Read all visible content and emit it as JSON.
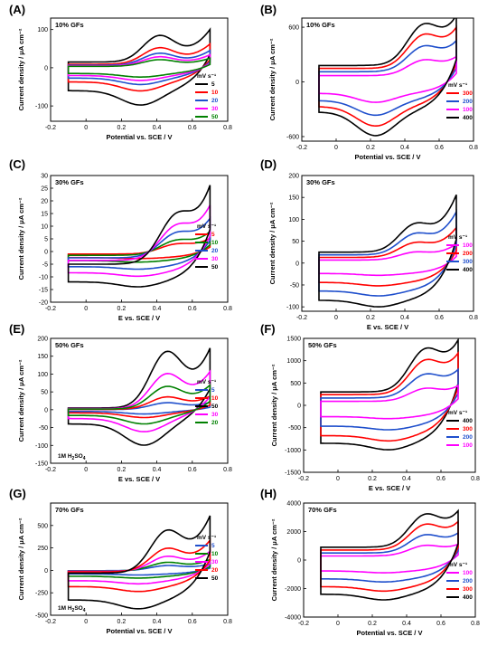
{
  "chart_data": [
    {
      "label": "(A)",
      "annotation": "10% GFs",
      "type": "line",
      "xlabel": "Potential vs. SCE / V",
      "ylabel": "Current density / μA cm⁻²",
      "xlim": [
        -0.2,
        0.8
      ],
      "ylim": [
        -140,
        130
      ],
      "xticks": [
        -0.2,
        0.0,
        0.2,
        0.4,
        0.6,
        0.8
      ],
      "yticks": [
        -100,
        0,
        100
      ],
      "legend_title": "mV s⁻¹",
      "series": [
        {
          "name": "5",
          "color": "#000000",
          "scale": 1.0
        },
        {
          "name": "10",
          "color": "#ff0000",
          "scale": 0.62
        },
        {
          "name": "20",
          "color": "#1f4fcc",
          "scale": 0.45
        },
        {
          "name": "30",
          "color": "#ff00ff",
          "scale": 0.34
        },
        {
          "name": "50",
          "color": "#008000",
          "scale": 0.25
        }
      ],
      "curve": {
        "x_start": -0.1,
        "x_end": 0.7,
        "anodic_base": 15,
        "cathodic_base": -60,
        "anodic_peak": [
          0.41,
          90
        ],
        "cathodic_peak": [
          0.31,
          -98
        ],
        "end_value": 100
      }
    },
    {
      "label": "(B)",
      "annotation": "10% GFs",
      "type": "line",
      "xlabel": "Potential vs. SCE / V",
      "ylabel": "Current density / μA cm⁻²",
      "xlim": [
        -0.2,
        0.8
      ],
      "ylim": [
        -650,
        700
      ],
      "xticks": [
        -0.2,
        0.0,
        0.2,
        0.4,
        0.6,
        0.8
      ],
      "yticks": [
        -600,
        0,
        600
      ],
      "legend_title": "mV s⁻¹",
      "series": [
        {
          "name": "300",
          "color": "#ff0000",
          "scale": 0.82
        },
        {
          "name": "200",
          "color": "#1f4fcc",
          "scale": 0.62
        },
        {
          "name": "100",
          "color": "#ff00ff",
          "scale": 0.38
        },
        {
          "name": "400",
          "color": "#000000",
          "scale": 1.0
        }
      ],
      "curve": {
        "x_start": -0.1,
        "x_end": 0.7,
        "anodic_base": 180,
        "cathodic_base": -330,
        "anodic_peak": [
          0.5,
          600
        ],
        "cathodic_peak": [
          0.23,
          -590
        ],
        "end_value": 700
      }
    },
    {
      "label": "(C)",
      "annotation": "30% GFs",
      "type": "line",
      "xlabel": "E vs. SCE / V",
      "ylabel": "Current density / μA cm⁻²",
      "xlim": [
        -0.2,
        0.8
      ],
      "ylim": [
        -20,
        30
      ],
      "xticks": [
        -0.2,
        0.0,
        0.2,
        0.4,
        0.6,
        0.8
      ],
      "yticks": [
        -20,
        -15,
        -10,
        -5,
        0,
        5,
        10,
        15,
        20,
        25,
        30
      ],
      "legend_title": "mV s⁻¹",
      "series": [
        {
          "name": "5",
          "color": "#ff0000",
          "scale": 0.2
        },
        {
          "name": "10",
          "color": "#008000",
          "scale": 0.3
        },
        {
          "name": "20",
          "color": "#1f4fcc",
          "scale": 0.5
        },
        {
          "name": "30",
          "color": "#ff00ff",
          "scale": 0.7
        },
        {
          "name": "50",
          "color": "#000000",
          "scale": 1.0
        }
      ],
      "curve": {
        "x_start": -0.1,
        "x_end": 0.7,
        "anodic_base": -5,
        "cathodic_base": -12,
        "anodic_peak": [
          0.5,
          12
        ],
        "cathodic_peak": [
          0.3,
          -14
        ],
        "end_value": 25
      }
    },
    {
      "label": "(D)",
      "annotation": "30% GFs",
      "type": "line",
      "xlabel": "E vs. SCE / V",
      "ylabel": "Current density / μA cm⁻²",
      "xlim": [
        -0.2,
        0.8
      ],
      "ylim": [
        -110,
        200
      ],
      "xticks": [
        -0.2,
        0.0,
        0.2,
        0.4,
        0.6,
        0.8
      ],
      "yticks": [
        -100,
        -50,
        0,
        50,
        100,
        150,
        200
      ],
      "legend_title": "mV s⁻¹",
      "series": [
        {
          "name": "100",
          "color": "#ff00ff",
          "scale": 0.28
        },
        {
          "name": "200",
          "color": "#ff0000",
          "scale": 0.52
        },
        {
          "name": "300",
          "color": "#1f4fcc",
          "scale": 0.75
        },
        {
          "name": "400",
          "color": "#000000",
          "scale": 1.0
        }
      ],
      "curve": {
        "x_start": -0.1,
        "x_end": 0.7,
        "anodic_base": 25,
        "cathodic_base": -85,
        "anodic_peak": [
          0.45,
          85
        ],
        "cathodic_peak": [
          0.25,
          -100
        ],
        "end_value": 155
      }
    },
    {
      "label": "(E)",
      "annotation": "50% GFs",
      "inset_text": "1M H2SO4",
      "type": "line",
      "xlabel": "E vs. SCE / V",
      "ylabel": "Current density / μA cm⁻²",
      "xlim": [
        -0.2,
        0.8
      ],
      "ylim": [
        -150,
        200
      ],
      "xticks": [
        -0.2,
        0.0,
        0.2,
        0.4,
        0.6,
        0.8
      ],
      "yticks": [
        -150,
        -100,
        -50,
        0,
        50,
        100,
        150,
        200
      ],
      "legend_title": "mV s⁻¹",
      "series": [
        {
          "name": "5",
          "color": "#1f4fcc",
          "scale": 0.12
        },
        {
          "name": "10",
          "color": "#ff0000",
          "scale": 0.22
        },
        {
          "name": "50",
          "color": "#000000",
          "scale": 1.0
        },
        {
          "name": "30",
          "color": "#ff00ff",
          "scale": 0.62
        },
        {
          "name": "20",
          "color": "#008000",
          "scale": 0.4
        }
      ],
      "curve": {
        "x_start": -0.1,
        "x_end": 0.7,
        "anodic_base": 5,
        "cathodic_base": -40,
        "anodic_peak": [
          0.45,
          170
        ],
        "cathodic_peak": [
          0.33,
          -100
        ],
        "end_value": 170
      }
    },
    {
      "label": "(F)",
      "annotation": "50% GFs",
      "type": "line",
      "xlabel": "E vs. SCE / V",
      "ylabel": "Current density / μA cm⁻²",
      "xlim": [
        -0.2,
        0.8
      ],
      "ylim": [
        -1500,
        1500
      ],
      "xticks": [
        -0.2,
        0.0,
        0.2,
        0.4,
        0.6,
        0.8
      ],
      "yticks": [
        -1500,
        -1000,
        -500,
        0,
        500,
        1000,
        1500
      ],
      "legend_title": "mV s⁻¹",
      "series": [
        {
          "name": "400",
          "color": "#000000",
          "scale": 1.0
        },
        {
          "name": "300",
          "color": "#ff0000",
          "scale": 0.8
        },
        {
          "name": "200",
          "color": "#1f4fcc",
          "scale": 0.55
        },
        {
          "name": "100",
          "color": "#ff00ff",
          "scale": 0.3
        }
      ],
      "curve": {
        "x_start": -0.1,
        "x_end": 0.7,
        "anodic_base": 300,
        "cathodic_base": -850,
        "anodic_peak": [
          0.5,
          1200
        ],
        "cathodic_peak": [
          0.3,
          -1000
        ],
        "end_value": 1400
      }
    },
    {
      "label": "(G)",
      "annotation": "70% GFs",
      "inset_text": "1M H2SO4",
      "type": "line",
      "xlabel": "Potential vs. SCE / V",
      "ylabel": "Current density / μA cm⁻²",
      "xlim": [
        -0.2,
        0.8
      ],
      "ylim": [
        -500,
        750
      ],
      "xticks": [
        -0.2,
        0.0,
        0.2,
        0.4,
        0.6,
        0.8
      ],
      "yticks": [
        -500,
        -250,
        0,
        250,
        500
      ],
      "legend_title": "mV s⁻¹",
      "series": [
        {
          "name": "5",
          "color": "#1f4fcc",
          "scale": 0.12
        },
        {
          "name": "10",
          "color": "#008000",
          "scale": 0.2
        },
        {
          "name": "30",
          "color": "#ff00ff",
          "scale": 0.35
        },
        {
          "name": "20",
          "color": "#ff0000",
          "scale": 0.55
        },
        {
          "name": "50",
          "color": "#000000",
          "scale": 1.0
        }
      ],
      "curve": {
        "x_start": -0.1,
        "x_end": 0.7,
        "anodic_base": -30,
        "cathodic_base": -330,
        "anodic_peak": [
          0.45,
          450
        ],
        "cathodic_peak": [
          0.3,
          -430
        ],
        "end_value": 600
      }
    },
    {
      "label": "(H)",
      "annotation": "70% GFs",
      "type": "line",
      "xlabel": "Potential vs. SCE / V",
      "ylabel": "Current density / μA cm⁻²",
      "xlim": [
        -0.2,
        0.8
      ],
      "ylim": [
        -4000,
        4000
      ],
      "xticks": [
        -0.2,
        0.0,
        0.2,
        0.4,
        0.6,
        0.8
      ],
      "yticks": [
        -4000,
        -2000,
        0,
        2000,
        4000
      ],
      "legend_title": "mV s⁻¹",
      "series": [
        {
          "name": "100",
          "color": "#ff00ff",
          "scale": 0.32
        },
        {
          "name": "200",
          "color": "#1f4fcc",
          "scale": 0.55
        },
        {
          "name": "300",
          "color": "#ff0000",
          "scale": 0.78
        },
        {
          "name": "400",
          "color": "#000000",
          "scale": 1.0
        }
      ],
      "curve": {
        "x_start": -0.1,
        "x_end": 0.7,
        "anodic_base": 900,
        "cathodic_base": -2400,
        "anodic_peak": [
          0.5,
          3100
        ],
        "cathodic_peak": [
          0.27,
          -2800
        ],
        "end_value": 3300
      }
    }
  ]
}
